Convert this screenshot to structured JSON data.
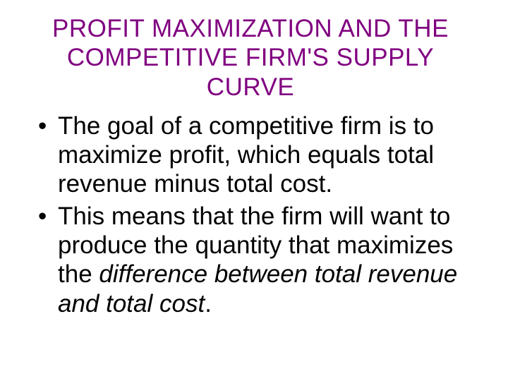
{
  "slide": {
    "title_line1": "PROFIT MAXIMIZATION AND THE",
    "title_line2": "COMPETITIVE FIRM'S SUPPLY",
    "title_line3": "CURVE",
    "bullets": [
      {
        "text_plain": "The goal of a competitive firm is to maximize profit, which equals total revenue minus total cost."
      },
      {
        "text_before_italic": "This means that the firm will want to produce the quantity that maximizes the ",
        "text_italic": "difference between total revenue and total cost",
        "text_after_italic": "."
      }
    ]
  },
  "style": {
    "title_color": "#800080",
    "body_color": "#000000",
    "background_color": "#ffffff",
    "title_fontsize": 35,
    "body_fontsize": 35,
    "font_family": "Arial"
  }
}
